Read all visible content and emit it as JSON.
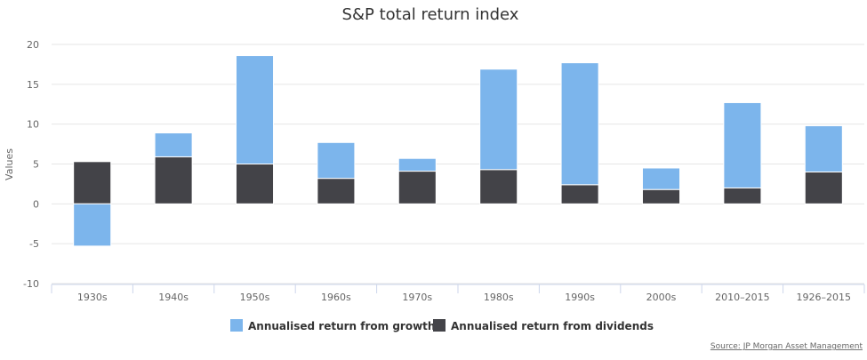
{
  "chart_data": {
    "type": "bar",
    "stacked": true,
    "title": "S&P total return index",
    "ylabel": "Values",
    "xlabel": "",
    "ylim": [
      -10,
      20
    ],
    "yticks": [
      20,
      15,
      10,
      5,
      0,
      -5,
      -10
    ],
    "grid": true,
    "legend_position": "bottom",
    "categories": [
      "1930s",
      "1940s",
      "1950s",
      "1960s",
      "1970s",
      "1980s",
      "1990s",
      "2000s",
      "2010–2015",
      "1926–2015"
    ],
    "series": [
      {
        "name": "Annualised return from growth",
        "color": "#7cb5ec",
        "values": [
          -5.3,
          3.0,
          13.6,
          4.5,
          1.6,
          12.6,
          15.3,
          2.7,
          10.7,
          5.8
        ]
      },
      {
        "name": "Annualised return from dividends",
        "color": "#434348",
        "values": [
          5.3,
          5.9,
          5.0,
          3.2,
          4.1,
          4.3,
          2.4,
          1.8,
          2.0,
          4.0
        ]
      }
    ],
    "source": "Source: JP Morgan Asset Management"
  }
}
